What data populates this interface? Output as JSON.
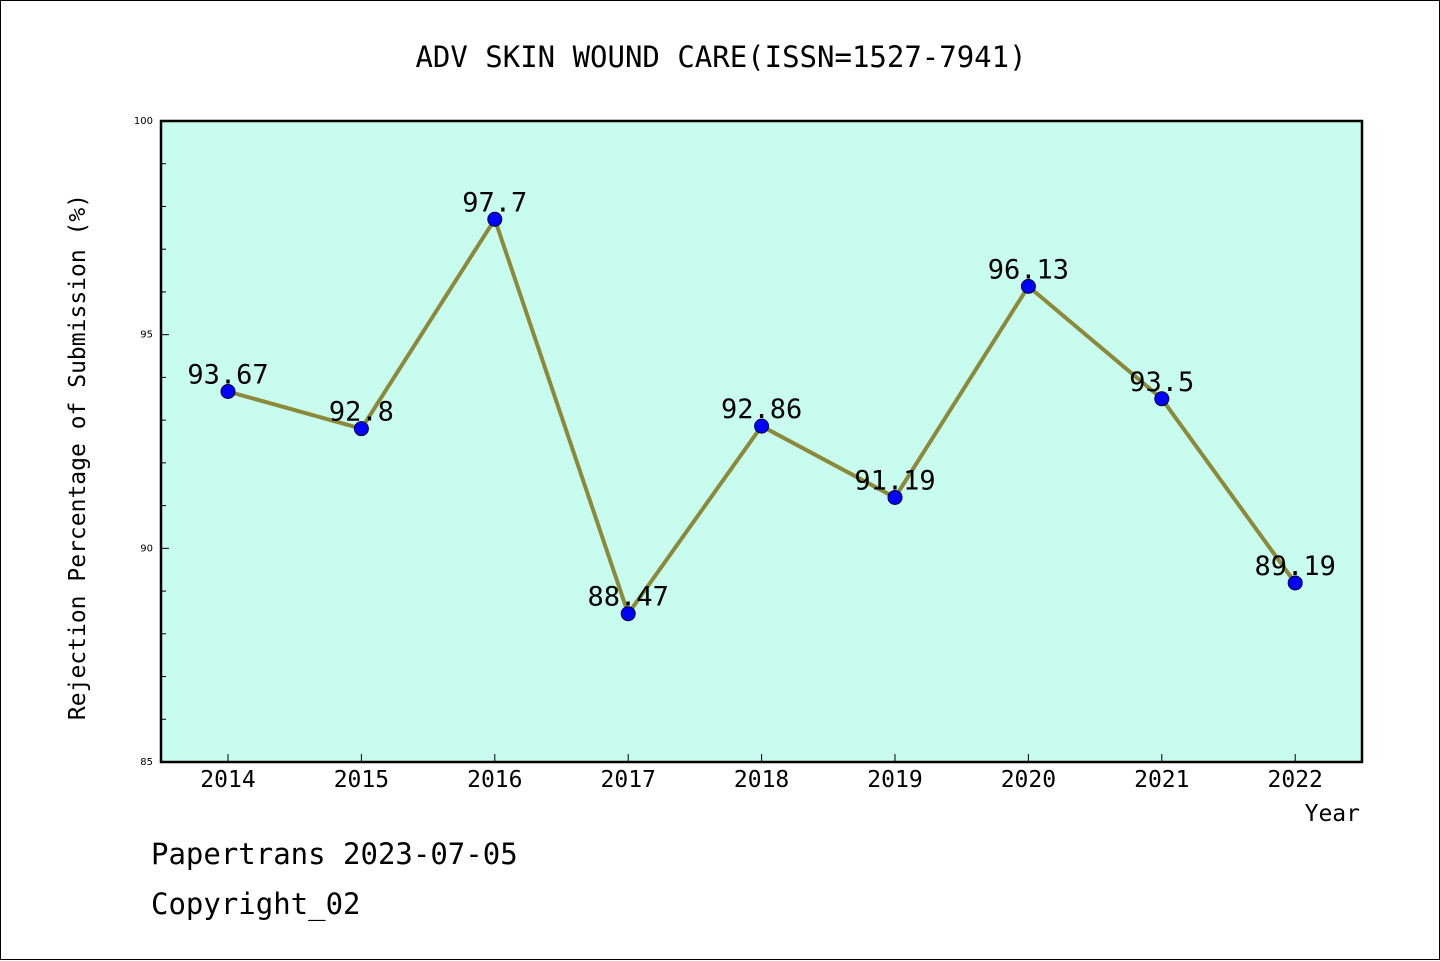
{
  "chart_data": {
    "type": "line",
    "title": "ADV SKIN WOUND CARE(ISSN=1527-7941)",
    "xlabel": "Year",
    "ylabel": "Rejection Percentage of Submission (%)",
    "categories": [
      "2014",
      "2015",
      "2016",
      "2017",
      "2018",
      "2019",
      "2020",
      "2021",
      "2022"
    ],
    "series": [
      {
        "values": [
          93.67,
          92.8,
          97.7,
          88.47,
          92.86,
          91.19,
          96.13,
          93.5,
          89.19
        ],
        "labels": [
          "93.67",
          "92.8",
          "97.7",
          "88.47",
          "92.86",
          "91.19",
          "96.13",
          "93.5",
          "89.19"
        ],
        "line_color": "#8c8a3a",
        "marker_color": "#0000ff"
      }
    ],
    "ylim": [
      85,
      100
    ],
    "y_ticks": [
      "85",
      "90",
      "95",
      "100"
    ],
    "y_minor_step": 1,
    "plot_background": "#c8fcee",
    "grid": false,
    "legend": "none"
  },
  "footer": {
    "line1": "Papertrans 2023-07-05",
    "line2": "Copyright_02"
  }
}
